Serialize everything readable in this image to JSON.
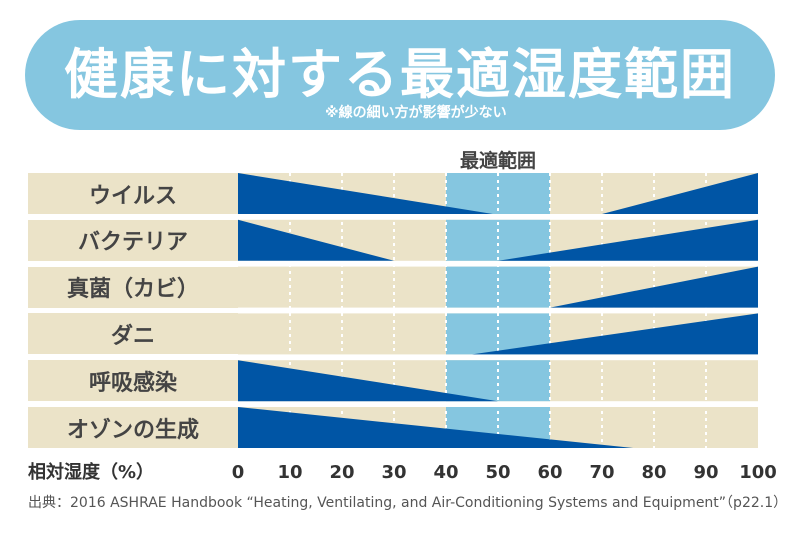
{
  "chart_data": {
    "type": "range-wedge",
    "title": "健康に対する最適湿度範囲",
    "subtitle": "※線の細い方が影響が少ない",
    "optimal_label": "最適範囲",
    "optimal_range": [
      40,
      60
    ],
    "xlabel": "相対湿度（%）",
    "xlim": [
      0,
      100
    ],
    "xticks": [
      0,
      10,
      20,
      30,
      40,
      50,
      60,
      70,
      80,
      90,
      100
    ],
    "grid": true,
    "categories": [
      "ウイルス",
      "バクテリア",
      "真菌（カビ）",
      "ダニ",
      "呼吸感染",
      "オゾンの生成"
    ],
    "wedges": [
      [
        {
          "from": 0,
          "to": 49,
          "direction": "decreasing"
        },
        {
          "from": 70,
          "to": 100,
          "direction": "increasing"
        }
      ],
      [
        {
          "from": 0,
          "to": 30,
          "direction": "decreasing"
        },
        {
          "from": 50,
          "to": 100,
          "direction": "increasing"
        }
      ],
      [
        {
          "from": 60,
          "to": 100,
          "direction": "increasing"
        }
      ],
      [
        {
          "from": 45,
          "to": 100,
          "direction": "increasing"
        }
      ],
      [
        {
          "from": 0,
          "to": 50,
          "direction": "decreasing"
        }
      ],
      [
        {
          "from": 0,
          "to": 76,
          "direction": "decreasing"
        }
      ]
    ],
    "source": "出典：2016 ASHRAE Handbook “Heating, Ventilating, and Air-Conditioning Systems and Equipment”（p22.1）",
    "colors": {
      "wedge": "#0055a5",
      "optimal": "#85c6e0",
      "row": "#ebe3c8",
      "banner": "#85c6e0"
    }
  }
}
